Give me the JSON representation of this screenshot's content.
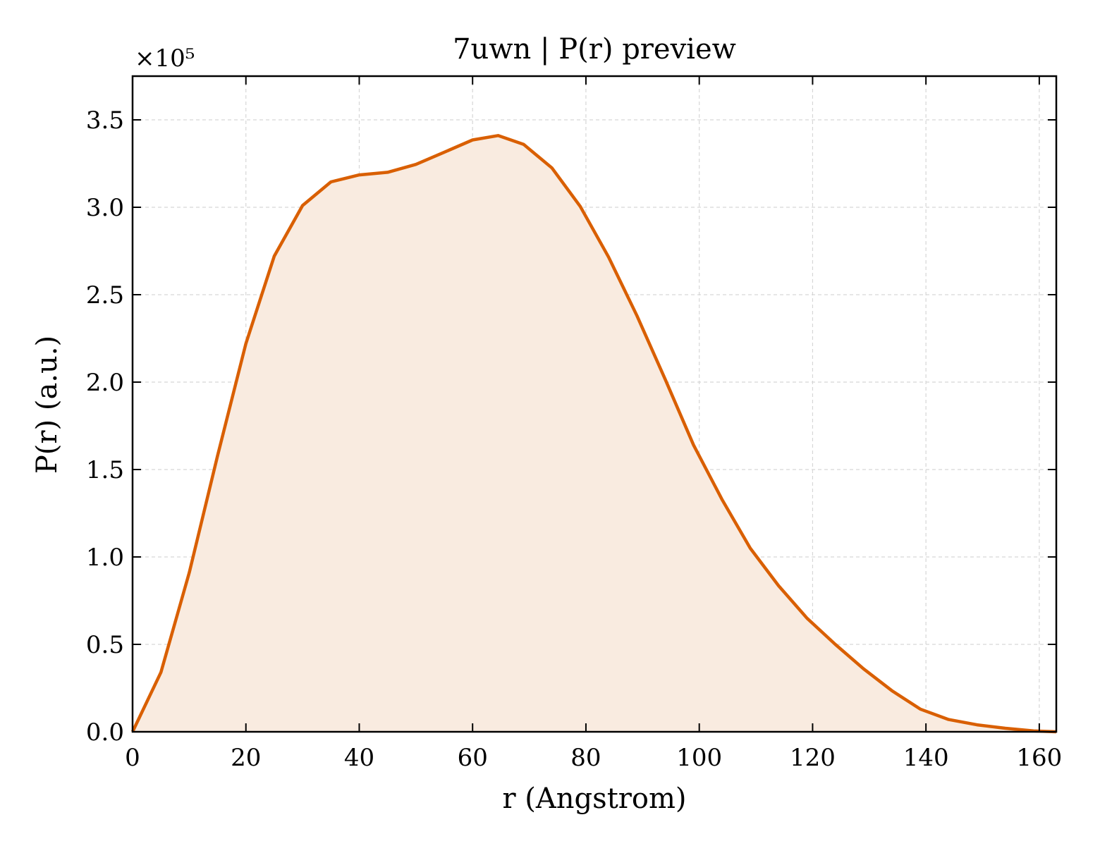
{
  "chart_data": {
    "type": "area",
    "title": "7uwn | P(r) preview",
    "xlabel": "r (Angstrom)",
    "ylabel": "P(r) (a.u.)",
    "y_multiplier_label": "×10⁵",
    "y_multiplier": 100000,
    "xlim": [
      0,
      163
    ],
    "ylim": [
      0,
      375000
    ],
    "grid": true,
    "x_ticks": [
      0,
      20,
      40,
      60,
      80,
      100,
      120,
      140,
      160
    ],
    "y_ticks": [
      0,
      50000,
      100000,
      150000,
      200000,
      250000,
      300000,
      350000
    ],
    "y_tick_labels": [
      "0.0",
      "0.5",
      "1.0",
      "1.5",
      "2.0",
      "2.5",
      "3.0",
      "3.5"
    ],
    "line_color": "#d95f02",
    "fill_color": "#f9ebe0",
    "x": [
      0,
      5,
      10,
      15,
      20,
      25,
      30,
      35,
      40,
      45,
      50,
      55,
      60,
      64.5,
      69,
      74,
      79,
      84,
      89,
      94,
      99,
      104,
      109,
      114,
      119,
      124,
      129,
      134,
      139,
      144,
      149,
      154,
      159,
      163
    ],
    "y": [
      0,
      34000,
      91000,
      158000,
      222000,
      272000,
      301000,
      314500,
      318500,
      320000,
      324500,
      331500,
      338500,
      341000,
      336000,
      322500,
      300500,
      271500,
      238000,
      201500,
      164000,
      133000,
      105000,
      83500,
      65000,
      50000,
      36000,
      23500,
      13000,
      7000,
      4000,
      2000,
      500,
      0
    ]
  }
}
